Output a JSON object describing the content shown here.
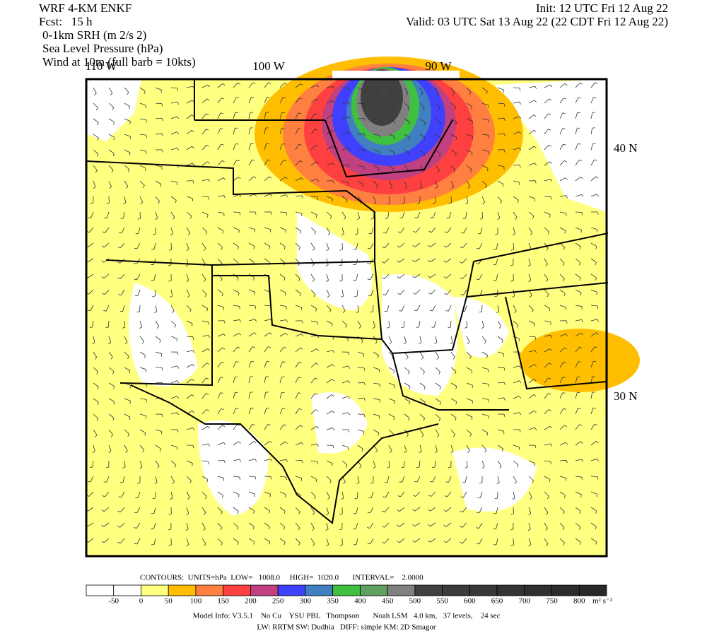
{
  "header": {
    "left": [
      "WRF 4-KM ENKF",
      "Fcst:   15 h",
      "0-1km SRH (m 2/s 2)",
      "Sea Level Pressure (hPa)",
      "Wind at 10m (full barb = 10kts)"
    ],
    "right": [
      "Init: 12 UTC Fri 12 Aug 22",
      "Valid: 03 UTC Sat 13 Aug 22 (22 CDT Fri 12 Aug 22)"
    ]
  },
  "map": {
    "longitude_labels": [
      "110 W",
      "100 W",
      "90 W"
    ],
    "latitude_labels": [
      "40 N",
      "30 N"
    ]
  },
  "colorbar": {
    "contours": "CONTOURS:  UNITS=hPa  LOW=   1008.0     HIGH=  1020.0       INTERVAL=    2.0000",
    "ticks": [
      -50,
      0,
      50,
      100,
      150,
      200,
      250,
      300,
      350,
      400,
      450,
      500,
      550,
      600,
      650,
      700,
      750,
      800
    ],
    "units": "m² s⁻²",
    "colors": [
      "#ffffff",
      "#ffffff",
      "#ffff80",
      "#ffbf00",
      "#ff8040",
      "#ff4040",
      "#c04080",
      "#4040ff",
      "#4080c0",
      "#40c040",
      "#60a060",
      "#808080",
      "#404040",
      "#3c3c3c",
      "#383838",
      "#343434",
      "#303030",
      "#2c2c2c",
      "#282828"
    ]
  },
  "footer": [
    "Model Info: V3.5.1    No Cu    YSU PBL   Thompson       Noah LSM   4.0 km,   37 levels,    24 sec",
    "LW: RRTM SW: Dudhia   DIFF: simple KM: 2D Smagor"
  ]
}
